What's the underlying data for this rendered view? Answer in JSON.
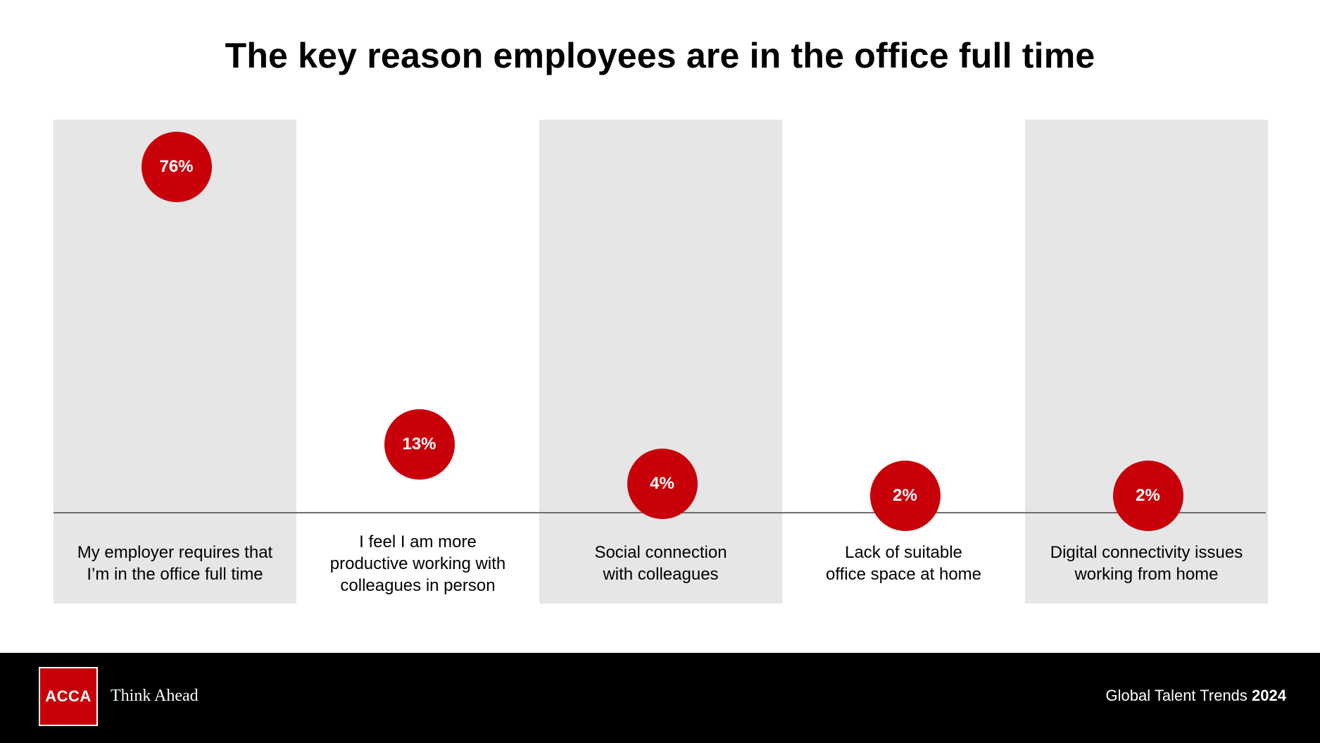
{
  "title": "The key reason employees are in the office full time",
  "chart_data": {
    "type": "bar",
    "categories": [
      "My employer requires that I’m in the office full time",
      "I feel I am more productive working with colleagues in person",
      "Social connection with colleagues",
      "Lack of suitable office space at home",
      "Digital connectivity issues working from home"
    ],
    "category_lines": [
      [
        "My employer requires that",
        "I’m in the office full time"
      ],
      [
        "I feel I am more",
        "productive working with",
        "colleagues in person"
      ],
      [
        "Social connection",
        "with colleagues"
      ],
      [
        "Lack of suitable",
        "office space at home"
      ],
      [
        "Digital connectivity issues",
        "working from home"
      ]
    ],
    "values": [
      76,
      13,
      4,
      2,
      2
    ],
    "data_labels": [
      "76%",
      "13%",
      "4%",
      "2%",
      "2%"
    ],
    "ylim": [
      0,
      100
    ],
    "grid": false
  },
  "colors": {
    "accent": "#c8000a",
    "column_band": "#e6e6e6",
    "footer_bg": "#000000"
  },
  "footer": {
    "logo_text": "ACCA",
    "tagline": "Think Ahead",
    "report_name": "Global Talent Trends",
    "report_year": "2024"
  }
}
